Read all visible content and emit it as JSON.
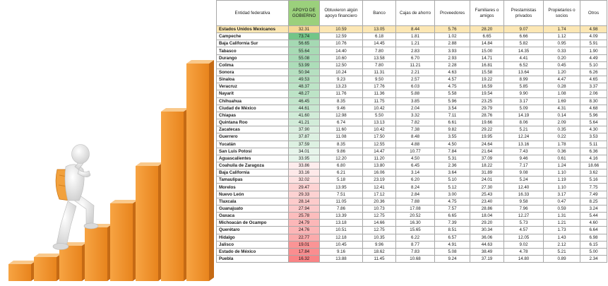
{
  "table": {
    "headers": [
      "Entidad federativa",
      "APOYO DE GOBIERNO",
      "Obtuvieron algún apoyo financiero",
      "Banco",
      "Cajas de ahorro",
      "Proveedores",
      "Familiares o amigos",
      "Prestamistas privados",
      "Propietarios o socios",
      "Otros"
    ],
    "rows": [
      [
        "Estados Unidos Mexicanos",
        "32.31",
        "10.59",
        "13.05",
        "8.44",
        "5.76",
        "28.20",
        "9.07",
        "1.74",
        "4.98"
      ],
      [
        "Campeche",
        "73.74",
        "12.59",
        "6.18",
        "1.81",
        "1.02",
        "6.65",
        "6.66",
        "1.12",
        "4.09"
      ],
      [
        "Baja California Sur",
        "56.65",
        "10.76",
        "14.45",
        "1.21",
        "2.88",
        "14.84",
        "5.82",
        "0.95",
        "5.91"
      ],
      [
        "Tabasco",
        "55.64",
        "14.40",
        "7.80",
        "2.83",
        "3.93",
        "15.00",
        "14.35",
        "0.33",
        "1.90"
      ],
      [
        "Durango",
        "55.08",
        "10.60",
        "13.58",
        "6.70",
        "2.93",
        "14.71",
        "4.41",
        "0.20",
        "4.49"
      ],
      [
        "Colima",
        "53.99",
        "12.50",
        "7.80",
        "11.21",
        "2.28",
        "16.81",
        "6.52",
        "0.45",
        "5.10"
      ],
      [
        "Sonora",
        "50.94",
        "10.24",
        "11.31",
        "2.21",
        "4.63",
        "15.58",
        "13.64",
        "1.20",
        "6.26"
      ],
      [
        "Sinaloa",
        "49.53",
        "9.23",
        "9.50",
        "2.57",
        "4.57",
        "19.22",
        "8.99",
        "4.47",
        "4.65"
      ],
      [
        "Veracruz",
        "48.37",
        "13.23",
        "17.76",
        "6.03",
        "4.75",
        "16.59",
        "5.85",
        "0.28",
        "3.37"
      ],
      [
        "Nayarit",
        "48.27",
        "11.76",
        "11.36",
        "5.88",
        "5.58",
        "19.54",
        "9.90",
        "1.08",
        "2.06"
      ],
      [
        "Chihuahua",
        "46.45",
        "8.35",
        "11.75",
        "3.85",
        "5.96",
        "23.25",
        "3.17",
        "1.69",
        "8.30"
      ],
      [
        "Ciudad de México",
        "44.61",
        "9.46",
        "10.42",
        "2.04",
        "3.54",
        "29.79",
        "5.09",
        "4.31",
        "4.68"
      ],
      [
        "Chiapas",
        "41.60",
        "12.98",
        "5.50",
        "3.32",
        "7.11",
        "28.76",
        "14.19",
        "0.14",
        "5.96"
      ],
      [
        "Quintana Roo",
        "41.21",
        "6.74",
        "13.13",
        "7.82",
        "6.61",
        "19.66",
        "8.06",
        "2.09",
        "5.64"
      ],
      [
        "Zacatecas",
        "37.90",
        "11.60",
        "10.42",
        "7.38",
        "9.82",
        "29.22",
        "5.21",
        "0.35",
        "4.30"
      ],
      [
        "Guerrero",
        "37.87",
        "11.08",
        "17.50",
        "8.48",
        "3.55",
        "19.95",
        "12.24",
        "0.22",
        "3.53"
      ],
      [
        "Yucatán",
        "37.59",
        "8.35",
        "12.55",
        "4.88",
        "4.50",
        "24.64",
        "13.16",
        "1.78",
        "5.11"
      ],
      [
        "San Luis Potosí",
        "34.01",
        "9.86",
        "14.47",
        "10.77",
        "7.84",
        "21.64",
        "7.43",
        "0.36",
        "6.36"
      ],
      [
        "Aguascalientes",
        "33.95",
        "12.20",
        "11.20",
        "4.50",
        "5.31",
        "37.09",
        "9.46",
        "0.61",
        "4.16"
      ],
      [
        "Coahuila de Zaragoza",
        "33.86",
        "6.80",
        "13.80",
        "6.45",
        "2.36",
        "18.22",
        "7.17",
        "1.24",
        "18.66"
      ],
      [
        "Baja California",
        "33.16",
        "6.21",
        "16.06",
        "3.14",
        "3.64",
        "31.89",
        "9.08",
        "1.10",
        "3.62"
      ],
      [
        "Tamaulipas",
        "32.02",
        "5.18",
        "23.19",
        "6.20",
        "5.10",
        "24.01",
        "5.24",
        "1.19",
        "5.16"
      ],
      [
        "Morelos",
        "29.47",
        "13.95",
        "12.41",
        "8.24",
        "5.12",
        "27.30",
        "12.40",
        "1.10",
        "7.75"
      ],
      [
        "Nuevo León",
        "29.33",
        "7.51",
        "17.12",
        "2.84",
        "3.00",
        "25.43",
        "16.33",
        "3.17",
        "7.49"
      ],
      [
        "Tlaxcala",
        "28.14",
        "11.05",
        "20.36",
        "7.88",
        "4.75",
        "23.40",
        "9.58",
        "0.47",
        "8.25"
      ],
      [
        "Guanajuato",
        "27.94",
        "7.86",
        "10.73",
        "17.08",
        "7.57",
        "28.86",
        "7.96",
        "0.59",
        "3.24"
      ],
      [
        "Oaxaca",
        "25.78",
        "13.39",
        "12.75",
        "20.52",
        "6.65",
        "18.04",
        "12.27",
        "1.31",
        "5.44"
      ],
      [
        "Michoacán de Ocampo",
        "24.79",
        "13.18",
        "14.66",
        "16.30",
        "7.39",
        "29.20",
        "5.73",
        "1.21",
        "4.60"
      ],
      [
        "Querétaro",
        "24.76",
        "10.51",
        "12.75",
        "15.65",
        "8.51",
        "30.34",
        "4.57",
        "1.73",
        "6.64"
      ],
      [
        "Hidalgo",
        "22.77",
        "12.18",
        "10.35",
        "6.22",
        "6.57",
        "36.06",
        "12.05",
        "1.43",
        "6.98"
      ],
      [
        "Jalisco",
        "19.01",
        "10.45",
        "9.96",
        "8.77",
        "4.91",
        "44.63",
        "9.02",
        "2.12",
        "6.15"
      ],
      [
        "Estado de México",
        "17.84",
        "9.16",
        "18.62",
        "7.83",
        "5.08",
        "38.49",
        "4.78",
        "5.21",
        "5.00"
      ],
      [
        "Puebla",
        "16.32",
        "13.88",
        "11.45",
        "10.68",
        "9.24",
        "37.19",
        "14.80",
        "0.89",
        "2.34"
      ]
    ]
  },
  "illustration": {
    "icon": "person-climbing-bar-steps-icon",
    "colors": {
      "bar_face": "#f0922c",
      "bar_top": "#f9c98c",
      "bar_side": "#c56a14",
      "figure": "#e6e6e6",
      "backpack": "#f2a13d"
    },
    "bar_count": 8
  },
  "accent_colors": {
    "header_green": "#9bd07c",
    "national_row": "#fce7b4",
    "apoyo_high": "#63be7b",
    "apoyo_mid": "#ffffff",
    "apoyo_low": "#f8696b"
  }
}
